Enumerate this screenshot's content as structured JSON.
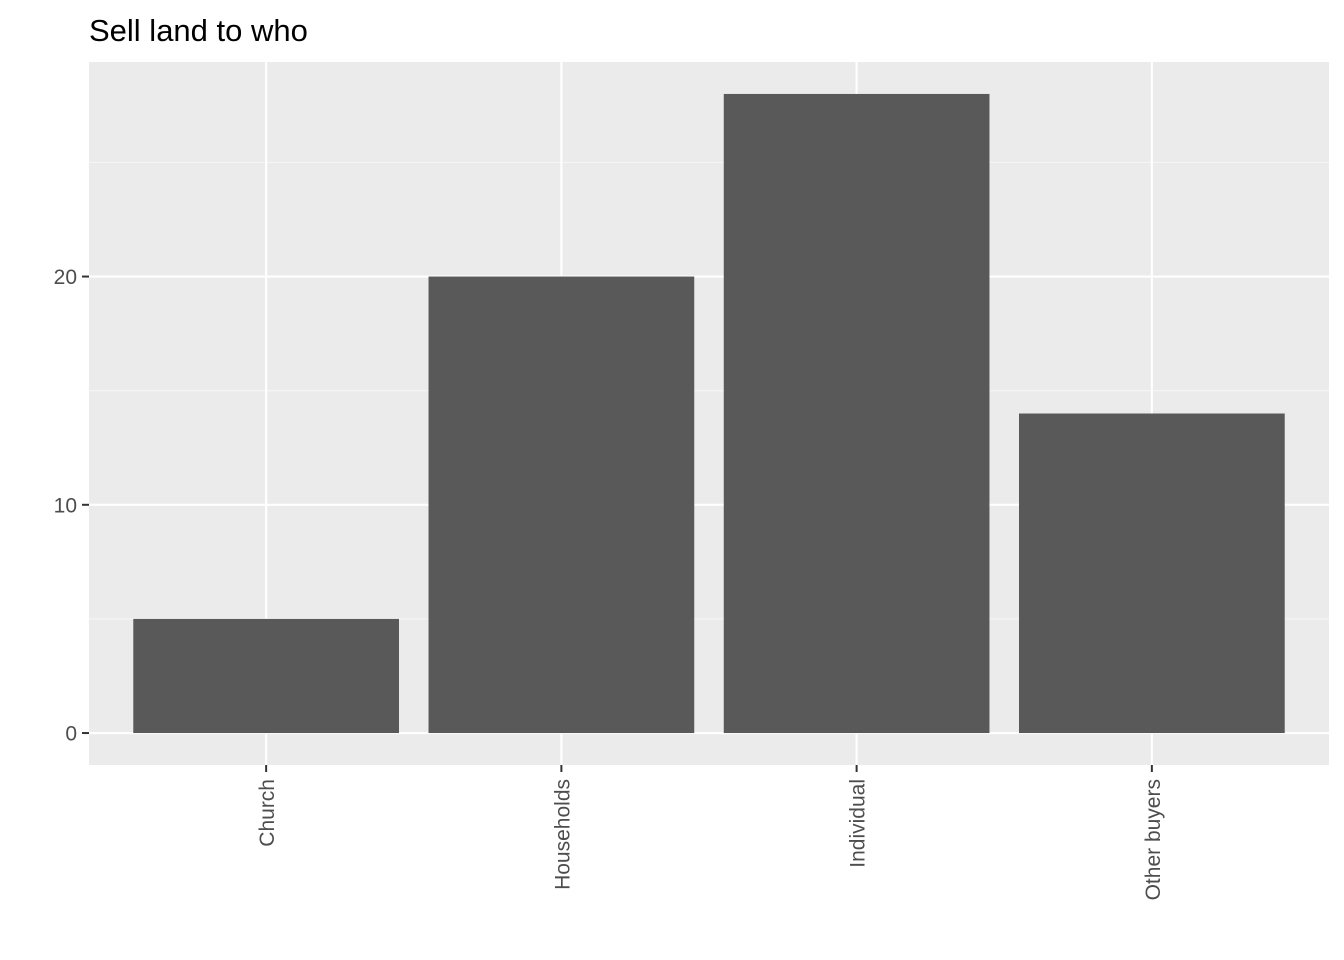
{
  "chart_data": {
    "type": "bar",
    "title": "Sell land to who",
    "xlabel": "",
    "ylabel": "",
    "categories": [
      "Church",
      "Households",
      "Individual",
      "Other buyers"
    ],
    "values": [
      5,
      20,
      28,
      14
    ],
    "ylim": [
      -1.4,
      29.4
    ],
    "yticks": [
      0,
      10,
      20
    ],
    "ytick_labels": [
      "0",
      "10",
      "20"
    ],
    "grid": true,
    "legend": "none",
    "colors": {
      "bar": "#595959",
      "panel": "#ebebeb",
      "grid_major": "#ffffff",
      "grid_minor": "#f5f5f5",
      "tick": "#333333",
      "tick_label": "#4d4d4d",
      "title": "#000000"
    }
  }
}
